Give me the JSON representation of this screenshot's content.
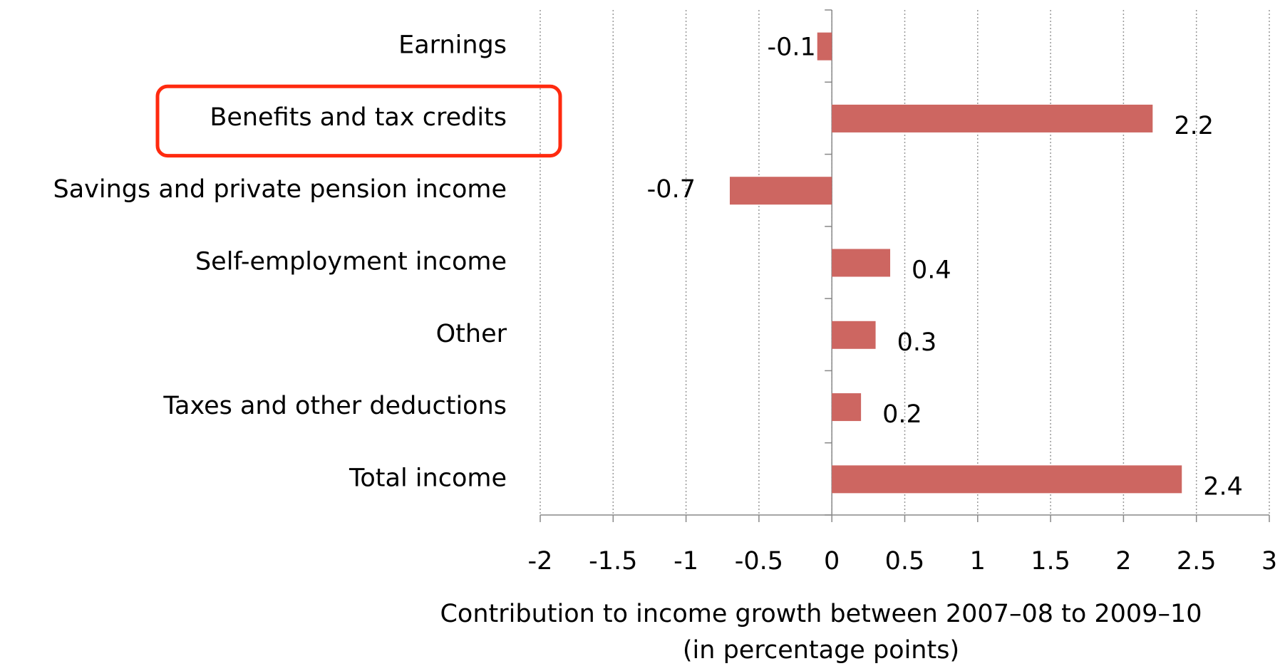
{
  "chart_data": {
    "type": "barh",
    "categories": [
      "Earnings",
      "Benefits and tax credits",
      "Savings and private pension income",
      "Self-employment income",
      "Other",
      "Taxes and other deductions",
      "Total income"
    ],
    "values": [
      -0.1,
      2.2,
      -0.7,
      0.4,
      0.3,
      0.2,
      2.4
    ],
    "color": "#cd6661",
    "xlim": [
      -2,
      3
    ],
    "xticks": [
      -2,
      -1.5,
      -1,
      -0.5,
      0,
      0.5,
      1,
      1.5,
      2,
      2.5,
      3
    ],
    "grid": true,
    "xlabel": [
      "Contribution to income growth between 2007–08 to 2009–10",
      "(in percentage points)"
    ]
  }
}
